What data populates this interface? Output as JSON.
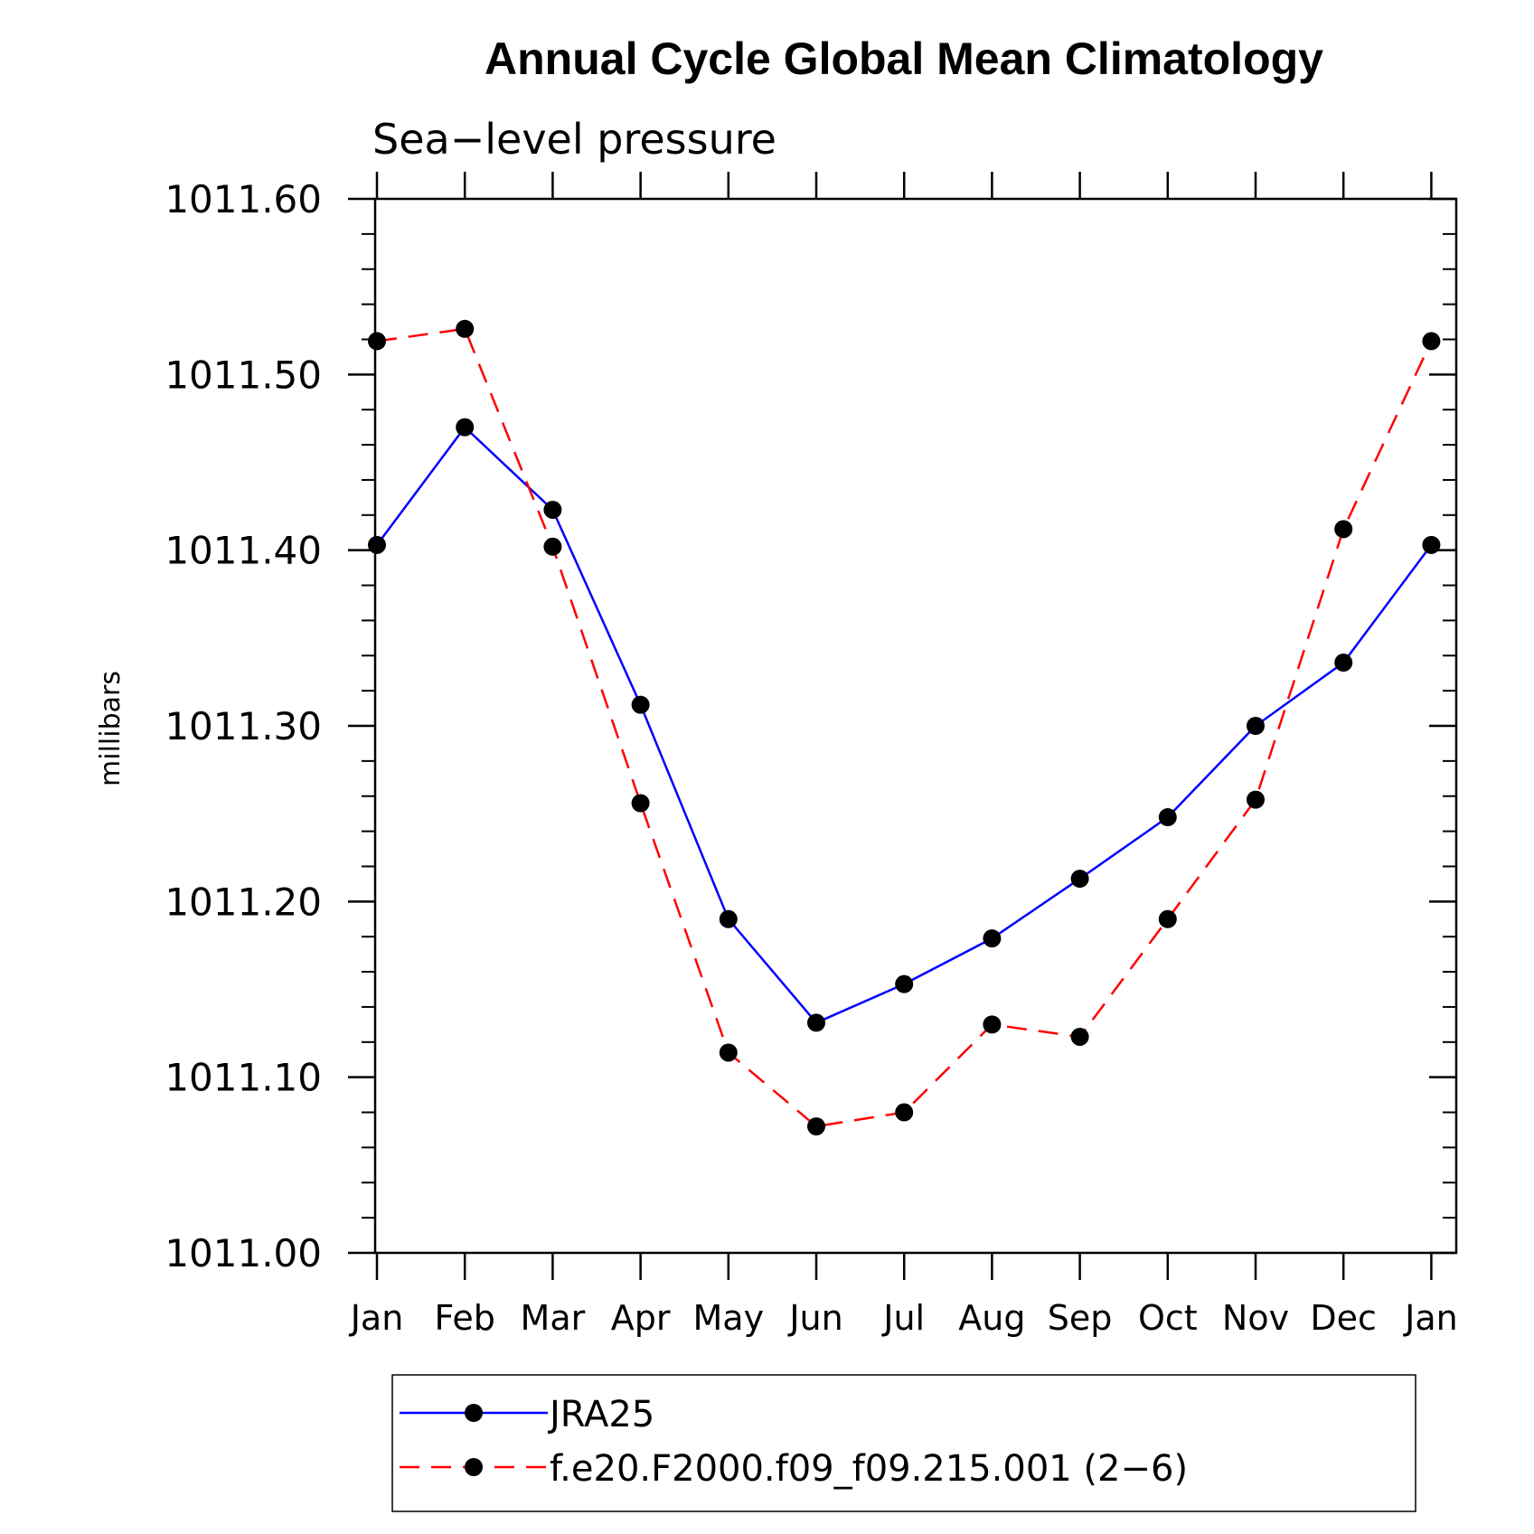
{
  "chart_data": {
    "type": "line",
    "title": "Annual Cycle Global Mean Climatology",
    "subtitle": "Sea−level pressure",
    "ylabel": "millibars",
    "xlabel": "",
    "categories": [
      "Jan",
      "Feb",
      "Mar",
      "Apr",
      "May",
      "Jun",
      "Jul",
      "Aug",
      "Sep",
      "Oct",
      "Nov",
      "Dec",
      "Jan"
    ],
    "ylim": [
      1011.0,
      1011.6
    ],
    "yticks": [
      "1011.00",
      "1011.10",
      "1011.20",
      "1011.30",
      "1011.40",
      "1011.50",
      "1011.60"
    ],
    "grid": false,
    "legend_position": "bottom",
    "series": [
      {
        "name": "JRA25",
        "color": "#0000ff",
        "line_style": "solid",
        "marker": "filled-circle",
        "values": [
          1011.403,
          1011.47,
          1011.423,
          1011.312,
          1011.19,
          1011.131,
          1011.153,
          1011.179,
          1011.213,
          1011.248,
          1011.3,
          1011.336,
          1011.403
        ]
      },
      {
        "name": "f.e20.F2000.f09_f09.215.001 (2−6)",
        "color": "#ff0000",
        "line_style": "dashed",
        "marker": "filled-circle",
        "values": [
          1011.519,
          1011.526,
          1011.402,
          1011.256,
          1011.114,
          1011.072,
          1011.08,
          1011.13,
          1011.123,
          1011.19,
          1011.258,
          1011.412,
          1011.519
        ]
      }
    ]
  }
}
